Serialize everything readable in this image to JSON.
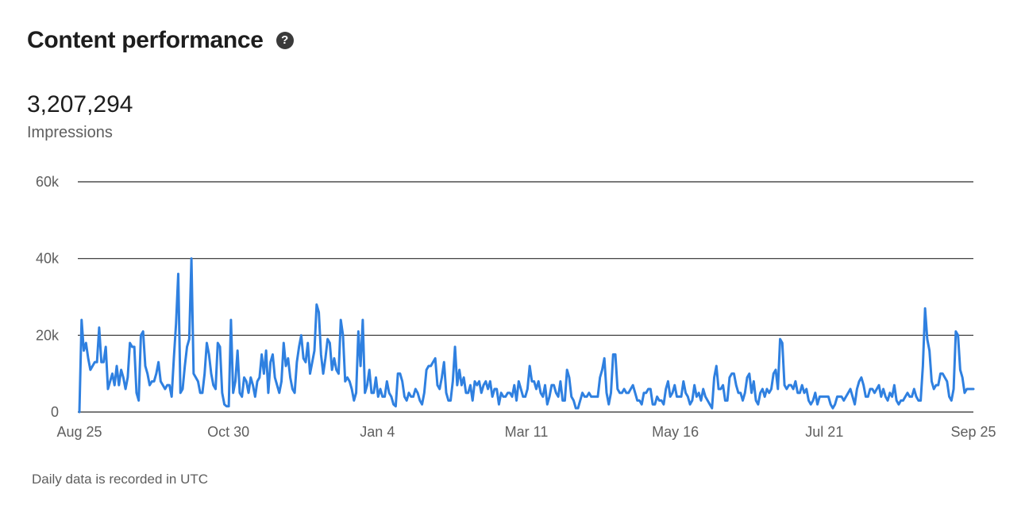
{
  "header": {
    "title": "Content performance",
    "help_icon": "question-circle-icon",
    "help_glyph": "?"
  },
  "summary": {
    "value": "3,207,294",
    "label": "Impressions"
  },
  "footnote": "Daily data is recorded in UTC",
  "colors": {
    "line": "#2f80e0",
    "grid": "#2b2b2b"
  },
  "chart_data": {
    "type": "line",
    "title": "",
    "xlabel": "",
    "ylabel": "",
    "ylim": [
      0,
      60000
    ],
    "yticks": [
      0,
      20000,
      40000,
      60000
    ],
    "ytick_labels": [
      "0",
      "20k",
      "40k",
      "60k"
    ],
    "xticks": [
      "Aug 25",
      "Oct 30",
      "Jan 4",
      "Mar 11",
      "May 16",
      "Jul 21",
      "Sep 25"
    ],
    "grid": true,
    "series": [
      {
        "values": [
          0,
          24000,
          16000,
          18000,
          14000,
          11000,
          12000,
          13000,
          13000,
          22000,
          13000,
          13000,
          17000,
          6000,
          8000,
          10000,
          7000,
          12000,
          7000,
          11000,
          9000,
          6000,
          9000,
          18000,
          17000,
          17000,
          5000,
          3000,
          20000,
          21000,
          12000,
          10000,
          7000,
          8000,
          8000,
          10000,
          13000,
          8000,
          7000,
          6000,
          7000,
          7000,
          4000,
          14000,
          23000,
          36000,
          5000,
          6000,
          12000,
          17000,
          19000,
          40000,
          10000,
          9000,
          8000,
          5000,
          5000,
          10000,
          18000,
          15000,
          10000,
          7000,
          6000,
          18000,
          17000,
          5000,
          2000,
          1500,
          1500,
          24000,
          5000,
          8000,
          16000,
          5000,
          4000,
          9000,
          8000,
          5000,
          9000,
          7000,
          4000,
          8000,
          9000,
          15000,
          10000,
          16000,
          5000,
          13000,
          15000,
          9000,
          7000,
          5000,
          8000,
          18000,
          12000,
          14000,
          9000,
          6000,
          5000,
          13000,
          17000,
          20000,
          14000,
          13000,
          18000,
          10000,
          13000,
          16000,
          28000,
          26000,
          15000,
          10000,
          14000,
          19000,
          18000,
          11000,
          14000,
          11000,
          10000,
          24000,
          20000,
          8000,
          9000,
          8000,
          6000,
          3000,
          5000,
          21000,
          12000,
          24000,
          5000,
          7000,
          11000,
          5000,
          5000,
          9000,
          4000,
          6000,
          4000,
          4000,
          8000,
          5000,
          4000,
          2000,
          1500,
          10000,
          10000,
          8000,
          4000,
          3000,
          5000,
          4000,
          4000,
          6000,
          5000,
          3000,
          2000,
          5000,
          11000,
          12000,
          12000,
          13000,
          14000,
          7000,
          6000,
          9000,
          13000,
          5000,
          3000,
          3000,
          8000,
          17000,
          7000,
          11000,
          7000,
          9000,
          5000,
          5000,
          7000,
          3000,
          8000,
          7000,
          8000,
          5000,
          7000,
          8000,
          6000,
          8000,
          4000,
          6000,
          6000,
          2000,
          5000,
          4000,
          4000,
          5000,
          5000,
          4000,
          7000,
          3000,
          8000,
          6000,
          4000,
          4000,
          6000,
          12000,
          8000,
          8000,
          6000,
          8000,
          5000,
          4000,
          7000,
          2000,
          4000,
          7000,
          7000,
          5000,
          4000,
          8000,
          3000,
          3000,
          11000,
          9000,
          4000,
          3000,
          1000,
          1000,
          3000,
          5000,
          4000,
          4000,
          5000,
          4000,
          4000,
          4000,
          4000,
          9000,
          11000,
          14000,
          5000,
          2000,
          5000,
          15000,
          15000,
          6000,
          5000,
          5000,
          6000,
          5000,
          5000,
          6000,
          7000,
          5000,
          3000,
          3000,
          2000,
          5000,
          5000,
          6000,
          6000,
          2000,
          2000,
          4000,
          3000,
          3000,
          2000,
          6000,
          8000,
          4000,
          5000,
          7000,
          4000,
          4000,
          4000,
          8000,
          5000,
          4000,
          2000,
          3000,
          7000,
          4000,
          5000,
          3000,
          6000,
          4000,
          3000,
          2000,
          1000,
          9000,
          12000,
          6000,
          6000,
          7000,
          3000,
          3000,
          9000,
          10000,
          10000,
          7000,
          5000,
          5000,
          3000,
          5000,
          9000,
          10000,
          5000,
          8000,
          3000,
          2000,
          5000,
          6000,
          4000,
          6000,
          5000,
          6000,
          10000,
          11000,
          6000,
          19000,
          18000,
          7000,
          6000,
          7000,
          7000,
          6000,
          8000,
          5000,
          5000,
          7000,
          5000,
          6000,
          3000,
          2000,
          3000,
          5000,
          2000,
          4000,
          4000,
          4000,
          4000,
          4000,
          2000,
          1000,
          2000,
          4000,
          4000,
          4000,
          3000,
          4000,
          5000,
          6000,
          4000,
          2000,
          6000,
          8000,
          9000,
          7000,
          4000,
          4000,
          6000,
          6000,
          5000,
          6000,
          7000,
          4000,
          6000,
          4000,
          3000,
          5000,
          4000,
          7000,
          3000,
          2000,
          3000,
          3000,
          4000,
          5000,
          4000,
          4000,
          6000,
          4000,
          3000,
          3000,
          12000,
          27000,
          19000,
          16000,
          8000,
          6000,
          7000,
          7000,
          10000,
          10000,
          9000,
          8000,
          4000,
          3000,
          6000,
          21000,
          20000,
          11000,
          9000,
          5000,
          6000,
          6000,
          6000,
          6000
        ]
      }
    ]
  }
}
